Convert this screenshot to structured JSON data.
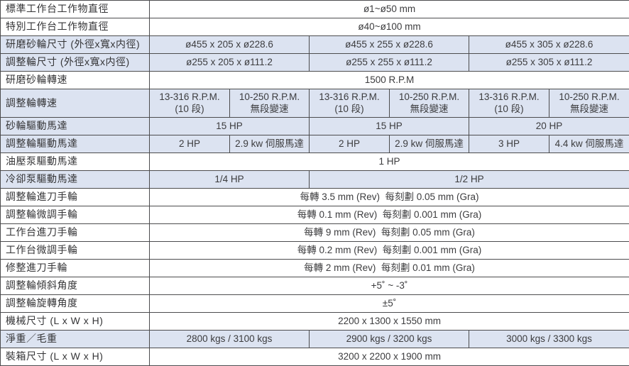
{
  "table": {
    "name": "centerless-grinder-specification-table",
    "colors": {
      "shaded_row_bg": "#dce3f1",
      "row_bg": "#ffffff",
      "border": "#4c4c4e",
      "text": "#3c3c3e"
    },
    "rows": [
      {
        "label": "標準工作台工作物直徑",
        "shaded": false,
        "tall": false,
        "cells": [
          {
            "text": "ø1~ø50 mm",
            "span": 6
          }
        ]
      },
      {
        "label": "特別工作台工作物直徑",
        "shaded": false,
        "tall": false,
        "cells": [
          {
            "text": "ø40~ø100 mm",
            "span": 6
          }
        ]
      },
      {
        "label": "研磨砂輪尺寸 (外徑x寬x内徑)",
        "shaded": true,
        "tall": false,
        "cells": [
          {
            "text": "ø455 x 205 x ø228.6",
            "span": 2
          },
          {
            "text": "ø455 x 255 x ø228.6",
            "span": 2
          },
          {
            "text": "ø455 x 305 x ø228.6",
            "span": 2
          }
        ]
      },
      {
        "label": "調整輪尺寸 (外徑x寬x内徑)",
        "shaded": true,
        "tall": false,
        "cells": [
          {
            "text": "ø255 x 205 x ø111.2",
            "span": 2
          },
          {
            "text": "ø255 x 255 x ø111.2",
            "span": 2
          },
          {
            "text": "ø255 x 305 x ø111.2",
            "span": 2
          }
        ]
      },
      {
        "label": "研磨砂輪轉速",
        "shaded": false,
        "tall": false,
        "cells": [
          {
            "text": "1500 R.P.M",
            "span": 6
          }
        ]
      },
      {
        "label": "調整輪轉速",
        "shaded": true,
        "tall": true,
        "cells": [
          {
            "text": "13-316 R.P.M.\n(10 段)",
            "span": 1
          },
          {
            "text": "10-250 R.P.M.\n無段變速",
            "span": 1
          },
          {
            "text": "13-316 R.P.M.\n(10 段)",
            "span": 1
          },
          {
            "text": "10-250 R.P.M.\n無段變速",
            "span": 1
          },
          {
            "text": "13-316 R.P.M.\n(10 段)",
            "span": 1
          },
          {
            "text": "10-250 R.P.M.\n無段變速",
            "span": 1
          }
        ]
      },
      {
        "label": "砂輪驅動馬達",
        "shaded": true,
        "tall": false,
        "cells": [
          {
            "text": "15 HP",
            "span": 2
          },
          {
            "text": "15 HP",
            "span": 2
          },
          {
            "text": "20 HP",
            "span": 2
          }
        ]
      },
      {
        "label": "調整輪驅動馬達",
        "shaded": true,
        "tall": false,
        "cells": [
          {
            "text": "2 HP",
            "span": 1
          },
          {
            "text": "2.9 kw 伺服馬達",
            "span": 1
          },
          {
            "text": "2 HP",
            "span": 1
          },
          {
            "text": "2.9 kw 伺服馬達",
            "span": 1
          },
          {
            "text": "3 HP",
            "span": 1
          },
          {
            "text": "4.4 kw 伺服馬達",
            "span": 1
          }
        ]
      },
      {
        "label": "油壓泵驅動馬達",
        "shaded": false,
        "tall": false,
        "cells": [
          {
            "text": "1 HP",
            "span": 6
          }
        ]
      },
      {
        "label": "冷卻泵驅動馬達",
        "shaded": true,
        "tall": false,
        "cells": [
          {
            "text": "1/4 HP",
            "span": 2
          },
          {
            "text": "1/2 HP",
            "span": 4
          }
        ]
      },
      {
        "label": "調整輪進刀手輪",
        "shaded": false,
        "tall": false,
        "cells": [
          {
            "text": "每轉 3.5 mm (Rev)  每刻劃 0.05 mm (Gra)",
            "span": 6
          }
        ]
      },
      {
        "label": "調整輪微調手輪",
        "shaded": false,
        "tall": false,
        "cells": [
          {
            "text": "每轉 0.1 mm (Rev)  每刻劃 0.001 mm (Gra)",
            "span": 6
          }
        ]
      },
      {
        "label": "工作台進刀手輪",
        "shaded": false,
        "tall": false,
        "cells": [
          {
            "text": "每轉 9 mm (Rev)  每刻劃 0.05 mm (Gra)",
            "span": 6
          }
        ]
      },
      {
        "label": "工作台微調手輪",
        "shaded": false,
        "tall": false,
        "cells": [
          {
            "text": "每轉 0.2 mm (Rev)  每刻劃 0.001 mm (Gra)",
            "span": 6
          }
        ]
      },
      {
        "label": "修整進刀手輪",
        "shaded": false,
        "tall": false,
        "cells": [
          {
            "text": "每轉 2 mm (Rev)  每刻劃 0.01 mm (Gra)",
            "span": 6
          }
        ]
      },
      {
        "label": "調整輪傾斜角度",
        "shaded": false,
        "tall": false,
        "cells": [
          {
            "text": "+5˚ ~ -3˚",
            "span": 6
          }
        ]
      },
      {
        "label": "調整輪旋轉角度",
        "shaded": false,
        "tall": false,
        "cells": [
          {
            "text": "±5˚",
            "span": 6
          }
        ]
      },
      {
        "label": "機械尺寸 (L x W x H)",
        "shaded": false,
        "tall": false,
        "cells": [
          {
            "text": "2200 x 1300 x 1550 mm",
            "span": 6
          }
        ]
      },
      {
        "label": "淨重／毛重",
        "shaded": true,
        "tall": false,
        "cells": [
          {
            "text": "2800 kgs / 3100 kgs",
            "span": 2
          },
          {
            "text": "2900 kgs / 3200 kgs",
            "span": 2
          },
          {
            "text": "3000 kgs / 3300 kgs",
            "span": 2
          }
        ]
      },
      {
        "label": "裝箱尺寸 (L x W x H)",
        "shaded": false,
        "tall": false,
        "cells": [
          {
            "text": "3200 x 2200 x 1900 mm",
            "span": 6
          }
        ]
      }
    ]
  }
}
